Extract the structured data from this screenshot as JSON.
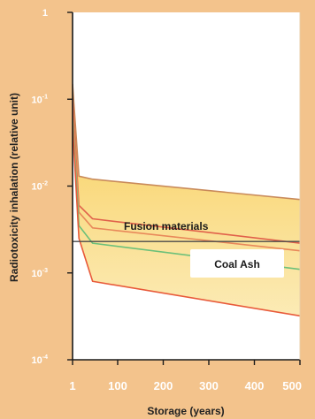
{
  "chart_data": {
    "type": "line",
    "title": "",
    "xlabel": "Storage (years)",
    "ylabel": "Radiotoxicity inhalation (relative unit)",
    "y_scale": "log",
    "xlim": [
      1,
      500
    ],
    "ylim": [
      0.0001,
      1
    ],
    "x_ticks": [
      "1",
      "100",
      "200",
      "300",
      "400",
      "500"
    ],
    "x_tick_values": [
      1,
      100,
      200,
      300,
      400,
      500
    ],
    "y_ticks": [
      {
        "base": "1",
        "exp": "",
        "value": 1
      },
      {
        "base": "10",
        "exp": "-1",
        "value": 0.1
      },
      {
        "base": "10",
        "exp": "-2",
        "value": 0.01
      },
      {
        "base": "10",
        "exp": "-3",
        "value": 0.001
      },
      {
        "base": "10",
        "exp": "-4",
        "value": 0.0001
      }
    ],
    "grid": false,
    "annotations": {
      "fusion": "Fusion materials",
      "coal": "Coal Ash"
    },
    "coal_ash_level": 0.0023,
    "band": {
      "x": [
        1,
        15,
        45,
        500
      ],
      "upper": [
        0.15,
        0.013,
        0.012,
        0.007
      ],
      "lower": [
        0.05,
        0.0025,
        0.0008,
        0.00032
      ]
    },
    "series": [
      {
        "color": "#c98a5a",
        "x": [
          1,
          15,
          45,
          500
        ],
        "y": [
          0.15,
          0.013,
          0.012,
          0.007
        ]
      },
      {
        "color": "#e0604a",
        "x": [
          1,
          15,
          45,
          500
        ],
        "y": [
          0.1,
          0.006,
          0.0042,
          0.0022
        ]
      },
      {
        "color": "#e8885a",
        "x": [
          1,
          15,
          45,
          500
        ],
        "y": [
          0.08,
          0.005,
          0.0033,
          0.0018
        ]
      },
      {
        "color": "#6cc07a",
        "x": [
          1,
          15,
          45,
          500
        ],
        "y": [
          0.06,
          0.0035,
          0.0022,
          0.0011
        ]
      },
      {
        "color": "#e85a3a",
        "x": [
          1,
          15,
          45,
          500
        ],
        "y": [
          0.05,
          0.0025,
          0.0008,
          0.00032
        ]
      }
    ],
    "coal_line_color": "#4a4a4a",
    "band_color": "#f7c94a"
  }
}
